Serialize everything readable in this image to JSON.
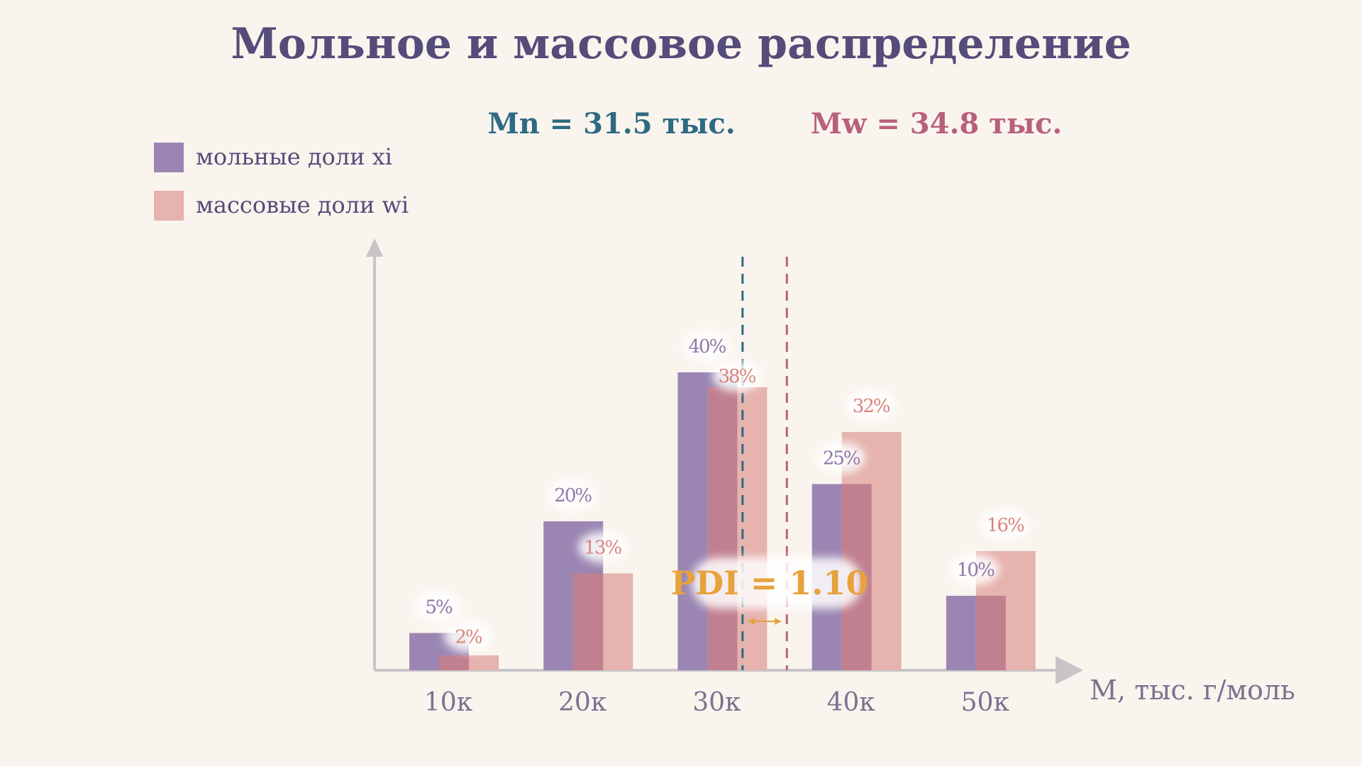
{
  "chart_data": {
    "type": "bar",
    "title": "Мольное и массовое распределение",
    "xlabel": "M, тыс. г/моль",
    "ylabel": "",
    "categories": [
      "10к",
      "20к",
      "30к",
      "40к",
      "50к"
    ],
    "x_values": [
      10,
      20,
      30,
      40,
      50
    ],
    "series": [
      {
        "name": "мольные доли xi",
        "values": [
          5,
          20,
          40,
          25,
          10
        ],
        "labels": [
          "5%",
          "20%",
          "40%",
          "25%",
          "10%"
        ],
        "color": "#9b86b3"
      },
      {
        "name": "массовые доли wi",
        "values": [
          2,
          13,
          38,
          32,
          16
        ],
        "labels": [
          "2%",
          "13%",
          "38%",
          "32%",
          "16%"
        ],
        "color": "#e6b3ae"
      }
    ],
    "overlap_color": "#c0808f",
    "mean_lines": [
      {
        "label": "Mn = 31.5 тыс.",
        "value": 31.5,
        "color": "#2e6a82"
      },
      {
        "label": "Mw = 34.8 тыс.",
        "value": 34.8,
        "color": "#b8607a"
      }
    ],
    "pdi": {
      "label": "PDI = 1.10",
      "value": 1.1,
      "color": "#e6a23c"
    },
    "label_colors": {
      "molar": "#8a7aa8",
      "mass": "#d9847c"
    },
    "axis_color": "#c8c4c8",
    "ylim": [
      0,
      45
    ],
    "grid": false,
    "legend_position": "top-left"
  }
}
